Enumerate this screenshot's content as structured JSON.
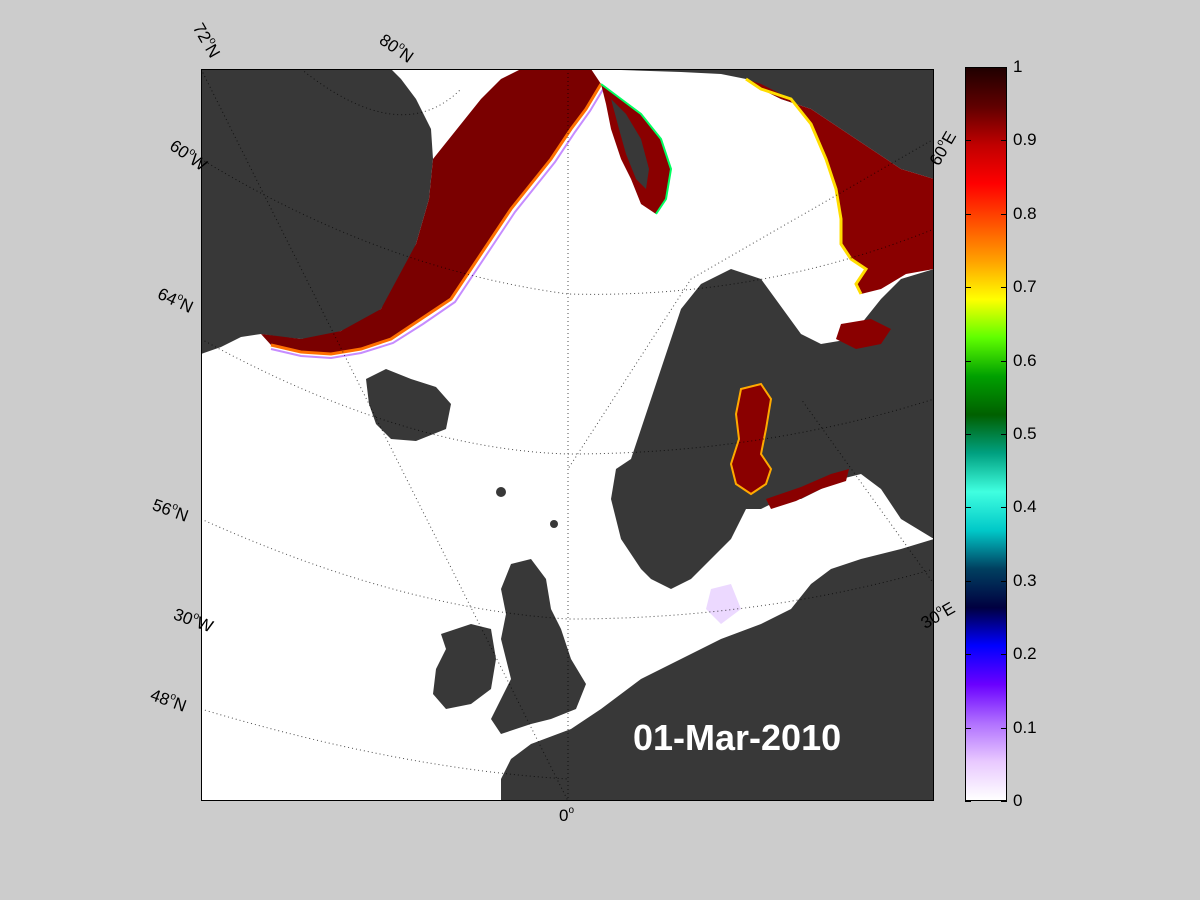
{
  "map": {
    "date": "01-Mar-2010",
    "colors": {
      "land": "#383838",
      "land_alt": "#7a7a7a",
      "open_water": "#ffffff",
      "ice_high": "#2a0000",
      "graticule": "#000000"
    },
    "graticule_labels": {
      "lat_72": "72",
      "lat_80": "80",
      "lat_64": "64",
      "lat_56": "56",
      "lat_48": "48",
      "lon_60w": "60",
      "lon_30w": "30",
      "lon_0": "0",
      "lon_30e": "30",
      "lon_60e": "60",
      "suffix_n": "N",
      "suffix_w": "W",
      "suffix_e": "E",
      "degree": "o"
    }
  },
  "colorbar": {
    "min": 0,
    "max": 1,
    "tick_labels": [
      "0",
      "0.1",
      "0.2",
      "0.3",
      "0.4",
      "0.5",
      "0.6",
      "0.7",
      "0.8",
      "0.9",
      "1"
    ],
    "stops": [
      "#ffffff",
      "#e8c8ff",
      "#b070ff",
      "#6a00ff",
      "#0000ff",
      "#000040",
      "#004060",
      "#00c8c8",
      "#40ffe0",
      "#00a080",
      "#006000",
      "#00a000",
      "#60ff00",
      "#ffff00",
      "#ffa000",
      "#ff5000",
      "#ff0000",
      "#c00000",
      "#600000",
      "#200000"
    ]
  }
}
